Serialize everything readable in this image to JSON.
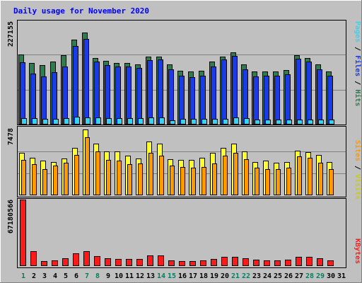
{
  "chart_data": {
    "type": "bar",
    "title": "Daily usage for November 2020",
    "categories": [
      "1",
      "2",
      "3",
      "4",
      "5",
      "6",
      "7",
      "8",
      "9",
      "10",
      "11",
      "12",
      "13",
      "14",
      "15",
      "16",
      "17",
      "18",
      "19",
      "20",
      "21",
      "22",
      "23",
      "24",
      "25",
      "26",
      "27",
      "28",
      "29",
      "30",
      "31"
    ],
    "weekend_days": [
      "1",
      "7",
      "8",
      "14",
      "15",
      "21",
      "22",
      "28",
      "29"
    ],
    "panels": [
      {
        "name": "hits",
        "y_max_label": "227155",
        "ylim": [
          0,
          227155
        ],
        "side_label": [
          "Pages",
          "Files",
          "Hits"
        ],
        "series": [
          {
            "name": "Hits",
            "color": "#2e7d4e",
            "values": [
              154000,
              135000,
              130000,
              138000,
              152000,
              187000,
              203000,
              147000,
              140000,
              136000,
              136000,
              133000,
              149000,
              150000,
              132000,
              118000,
              116000,
              119000,
              138000,
              150000,
              158000,
              132000,
              117000,
              117000,
              117000,
              120000,
              153000,
              146000,
              133000,
              117000,
              0
            ]
          },
          {
            "name": "Files",
            "color": "#1a3be8",
            "values": [
              137000,
              112000,
              106000,
              115000,
              128000,
              172000,
              188000,
              139000,
              130000,
              128000,
              128000,
              124000,
              142000,
              143000,
              122000,
              107000,
              104000,
              108000,
              128000,
              143000,
              151000,
              122000,
              106000,
              108000,
              108000,
              110000,
              144000,
              138000,
              122000,
              108000,
              0
            ]
          },
          {
            "name": "Pages",
            "color": "#33d4f4",
            "values": [
              14000,
              14000,
              13000,
              13000,
              14000,
              17000,
              15000,
              16000,
              14000,
              14000,
              14000,
              14000,
              15000,
              15000,
              9000,
              13000,
              13000,
              13000,
              13000,
              13000,
              15000,
              14000,
              11000,
              11000,
              11000,
              11000,
              11000,
              11000,
              11000,
              11000,
              0
            ]
          }
        ]
      },
      {
        "name": "visits",
        "y_max_label": "7478",
        "ylim": [
          0,
          7478
        ],
        "side_label": [
          "Sites",
          "Visits"
        ],
        "series": [
          {
            "name": "Visits",
            "color": "#ffff33",
            "values": [
              4800,
              4300,
              3900,
              3800,
              4200,
              5400,
              7478,
              5900,
              5000,
              5000,
              4500,
              4200,
              6100,
              5900,
              4100,
              4000,
              4000,
              4300,
              4800,
              5400,
              5900,
              5000,
              3800,
              3900,
              3700,
              3800,
              5100,
              4900,
              4600,
              3800,
              0
            ]
          },
          {
            "name": "Sites",
            "color": "#ff9900",
            "values": [
              4000,
              3500,
              3000,
              3400,
              3700,
              4600,
              6600,
              5000,
              4000,
              3900,
              3500,
              3600,
              4800,
              4500,
              3400,
              3200,
              3100,
              3200,
              3600,
              4500,
              4800,
              4100,
              3100,
              3000,
              3000,
              3100,
              4400,
              4300,
              3700,
              3000,
              0
            ]
          }
        ]
      },
      {
        "name": "kbytes",
        "y_max_label": "67180566",
        "ylim": [
          0,
          67180566
        ],
        "side_label": [
          "KBytes"
        ],
        "series": [
          {
            "name": "KBytes",
            "color": "#ff1a1a",
            "values": [
              67180566,
              15000000,
              5000000,
              6000000,
              8000000,
              13000000,
              15000000,
              10000000,
              8000000,
              7500000,
              7000000,
              7500000,
              11000000,
              11000000,
              6000000,
              5000000,
              5000000,
              6000000,
              7000000,
              9000000,
              9500000,
              8000000,
              6500000,
              6000000,
              6000000,
              6500000,
              9000000,
              9000000,
              8000000,
              6000000,
              0
            ]
          }
        ]
      }
    ]
  },
  "colors": {
    "background": "#c0c0c0",
    "title": "#0000ff",
    "axis_label": "#000000",
    "weekend_label": "#00805f",
    "weekday_label": "#000000",
    "gridline": "#808080",
    "pages": "#33d4f4",
    "files": "#1a3be8",
    "hits": "#2e7d4e",
    "sites": "#ff9900",
    "visits": "#ffff33",
    "kbytes": "#ff1a1a"
  }
}
